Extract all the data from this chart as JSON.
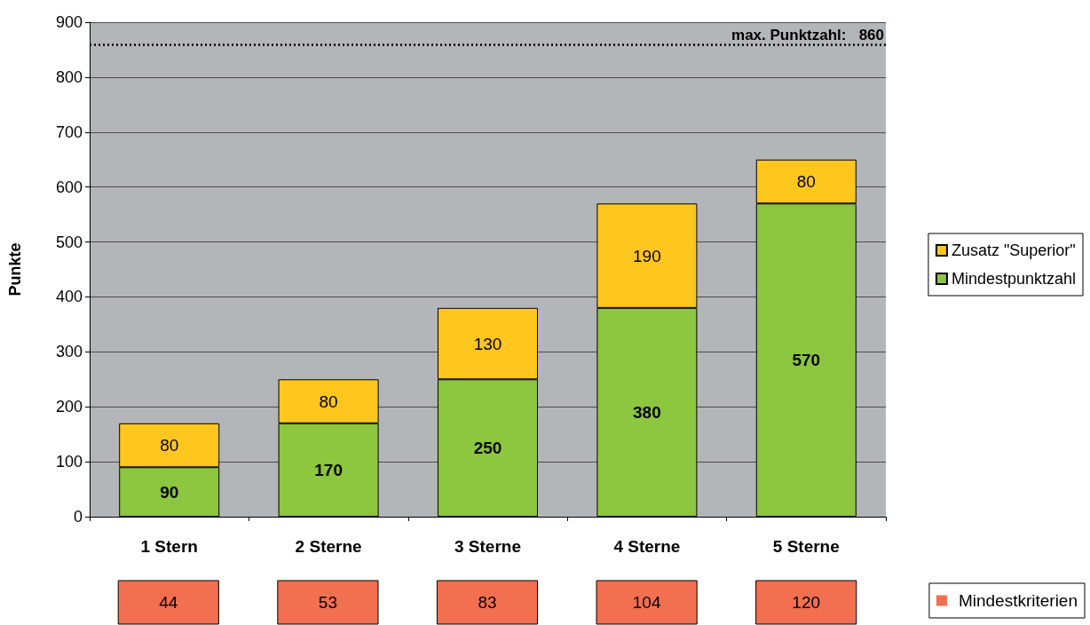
{
  "chart_data": [
    {
      "type": "bar",
      "stacked": true,
      "categories": [
        "1 Stern",
        "2 Sterne",
        "3 Sterne",
        "4 Sterne",
        "5 Sterne"
      ],
      "series": [
        {
          "name": "Mindestpunktzahl",
          "color": "#8dc63f",
          "values": [
            90,
            170,
            250,
            380,
            570
          ]
        },
        {
          "name": "Zusatz \"Superior\"",
          "color": "#ffc61e",
          "values": [
            80,
            80,
            130,
            190,
            80
          ]
        }
      ],
      "ylabel": "Punkte",
      "ylim": [
        0,
        900
      ],
      "yticks": [
        0,
        100,
        200,
        300,
        400,
        500,
        600,
        700,
        800,
        900
      ],
      "grid": "y",
      "legend": "right",
      "data_labels": true,
      "ref_lines": [
        {
          "axis": "y",
          "value": 860,
          "label": "max. Punktzahl:   860",
          "line_style": "dotted",
          "color": "#000000"
        }
      ]
    },
    {
      "type": "other",
      "categories": [
        null,
        null,
        null,
        null,
        null
      ],
      "series": [
        {
          "name": "Mindestkriterien",
          "color": "#f26f50",
          "values": [
            44,
            53,
            83,
            104,
            120
          ]
        }
      ],
      "data_labels": true,
      "legend": "right"
    }
  ]
}
